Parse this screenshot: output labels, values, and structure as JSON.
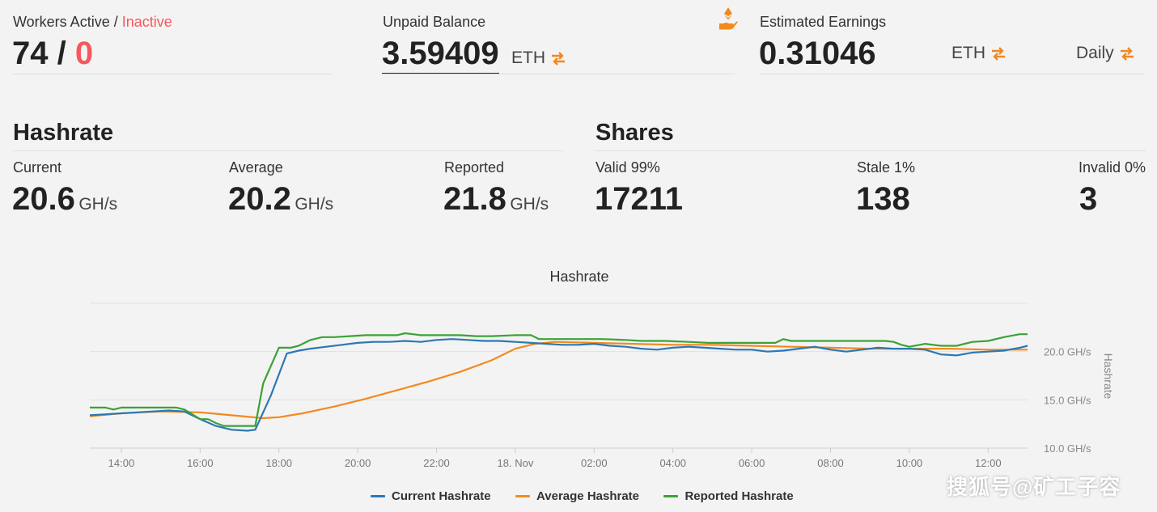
{
  "workers": {
    "label_active": "Workers Active",
    "label_sep": " / ",
    "label_inactive": "Inactive",
    "active": "74",
    "sep": " / ",
    "inactive": "0"
  },
  "unpaid": {
    "label": "Unpaid Balance",
    "value": "3.59409",
    "unit": "ETH",
    "icon": "eth-hand-icon"
  },
  "estimated": {
    "label": "Estimated Earnings",
    "value": "0.31046",
    "unit": "ETH",
    "period": "Daily"
  },
  "hashrate": {
    "title": "Hashrate",
    "current_label": "Current",
    "current_value": "20.6",
    "average_label": "Average",
    "average_value": "20.2",
    "reported_label": "Reported",
    "reported_value": "21.8",
    "unit": "GH/s"
  },
  "shares": {
    "title": "Shares",
    "valid_label": "Valid 99%",
    "valid_value": "17211",
    "stale_label": "Stale 1%",
    "stale_value": "138",
    "invalid_label": "Invalid 0%",
    "invalid_value": "3"
  },
  "colors": {
    "accent_orange": "#f08a1c",
    "inactive_red": "#f4585d",
    "current": "#2b78b4",
    "average": "#f28a1e",
    "reported": "#3aa336"
  },
  "chart_data": {
    "type": "line",
    "title": "Hashrate",
    "ylabel": "Hashrate",
    "ylim": [
      10,
      25
    ],
    "yticks": [
      10,
      15,
      20
    ],
    "ytick_labels": [
      "10.0 GH/s",
      "15.0 GH/s",
      "20.0 GH/s"
    ],
    "x_ticks": [
      14,
      16,
      18,
      20,
      22,
      24,
      26,
      28,
      30,
      32,
      34,
      36
    ],
    "x_tick_labels": [
      "14:00",
      "16:00",
      "18:00",
      "20:00",
      "22:00",
      "18. Nov",
      "02:00",
      "04:00",
      "06:00",
      "08:00",
      "10:00",
      "12:00"
    ],
    "xlim": [
      13.2,
      37.0
    ],
    "legend_position": "bottom",
    "series": [
      {
        "name": "Current Hashrate",
        "color": "#2b78b4",
        "x": [
          13.2,
          13.6,
          14.0,
          14.4,
          14.8,
          15.2,
          15.6,
          16.0,
          16.4,
          16.8,
          17.2,
          17.4,
          17.8,
          18.2,
          18.5,
          18.8,
          19.2,
          19.6,
          20.0,
          20.4,
          20.8,
          21.2,
          21.6,
          22.0,
          22.4,
          22.8,
          23.2,
          23.6,
          24.0,
          24.4,
          24.8,
          25.2,
          25.6,
          26.0,
          26.4,
          26.8,
          27.2,
          27.6,
          28.0,
          28.4,
          28.8,
          29.2,
          29.6,
          30.0,
          30.4,
          30.8,
          31.2,
          31.6,
          32.0,
          32.4,
          32.8,
          33.2,
          33.6,
          34.0,
          34.4,
          34.8,
          35.2,
          35.6,
          36.0,
          36.4,
          36.8,
          37.0
        ],
        "values": [
          13.4,
          13.5,
          13.6,
          13.7,
          13.8,
          13.9,
          13.8,
          13.0,
          12.3,
          11.9,
          11.8,
          11.9,
          15.5,
          19.8,
          20.1,
          20.3,
          20.5,
          20.7,
          20.9,
          21.0,
          21.0,
          21.1,
          21.0,
          21.2,
          21.3,
          21.2,
          21.1,
          21.1,
          21.0,
          20.9,
          20.8,
          20.7,
          20.7,
          20.8,
          20.6,
          20.5,
          20.3,
          20.2,
          20.4,
          20.5,
          20.4,
          20.3,
          20.2,
          20.2,
          20.0,
          20.1,
          20.3,
          20.5,
          20.2,
          20.0,
          20.2,
          20.4,
          20.3,
          20.3,
          20.2,
          19.7,
          19.6,
          19.9,
          20.0,
          20.1,
          20.4,
          20.6
        ]
      },
      {
        "name": "Average Hashrate",
        "color": "#f28a1e",
        "x": [
          13.2,
          14.0,
          15.0,
          16.0,
          16.8,
          17.6,
          18.0,
          18.6,
          19.4,
          20.2,
          21.0,
          21.8,
          22.6,
          23.4,
          24.0,
          24.5,
          25.0,
          26.0,
          27.0,
          28.0,
          29.0,
          30.0,
          31.0,
          32.0,
          33.0,
          34.0,
          35.0,
          36.0,
          37.0
        ],
        "values": [
          13.3,
          13.6,
          13.8,
          13.7,
          13.4,
          13.1,
          13.2,
          13.6,
          14.3,
          15.1,
          16.0,
          16.9,
          17.9,
          19.1,
          20.3,
          20.8,
          21.0,
          20.9,
          20.8,
          20.7,
          20.7,
          20.6,
          20.5,
          20.4,
          20.3,
          20.3,
          20.3,
          20.2,
          20.2
        ]
      },
      {
        "name": "Reported Hashrate",
        "color": "#3aa336",
        "x": [
          13.2,
          13.6,
          13.8,
          14.0,
          14.5,
          15.0,
          15.4,
          15.6,
          15.8,
          16.0,
          16.2,
          16.4,
          16.6,
          17.0,
          17.4,
          17.6,
          18.0,
          18.3,
          18.5,
          18.8,
          19.1,
          19.4,
          19.8,
          20.2,
          20.6,
          21.0,
          21.2,
          21.4,
          21.6,
          22.0,
          22.6,
          23.0,
          23.4,
          24.0,
          24.4,
          24.6,
          25.0,
          25.6,
          26.2,
          26.8,
          27.2,
          27.8,
          28.4,
          28.9,
          29.4,
          29.8,
          30.2,
          30.6,
          30.8,
          31.0,
          31.4,
          32.0,
          32.6,
          33.0,
          33.4,
          33.6,
          33.8,
          34.0,
          34.4,
          34.8,
          35.2,
          35.6,
          36.0,
          36.4,
          36.8,
          37.0
        ],
        "values": [
          14.2,
          14.2,
          14.0,
          14.2,
          14.2,
          14.2,
          14.2,
          14.0,
          13.5,
          13.0,
          13.0,
          12.6,
          12.3,
          12.3,
          12.3,
          16.7,
          20.4,
          20.4,
          20.6,
          21.2,
          21.5,
          21.5,
          21.6,
          21.7,
          21.7,
          21.7,
          21.9,
          21.8,
          21.7,
          21.7,
          21.7,
          21.6,
          21.6,
          21.7,
          21.7,
          21.3,
          21.3,
          21.3,
          21.3,
          21.2,
          21.1,
          21.1,
          21.0,
          20.9,
          20.9,
          20.9,
          20.9,
          20.9,
          21.3,
          21.1,
          21.1,
          21.1,
          21.1,
          21.1,
          21.1,
          21.0,
          20.7,
          20.5,
          20.8,
          20.6,
          20.6,
          21.0,
          21.1,
          21.5,
          21.8,
          21.8
        ]
      }
    ]
  },
  "watermark": "搜狐号@矿工子容"
}
